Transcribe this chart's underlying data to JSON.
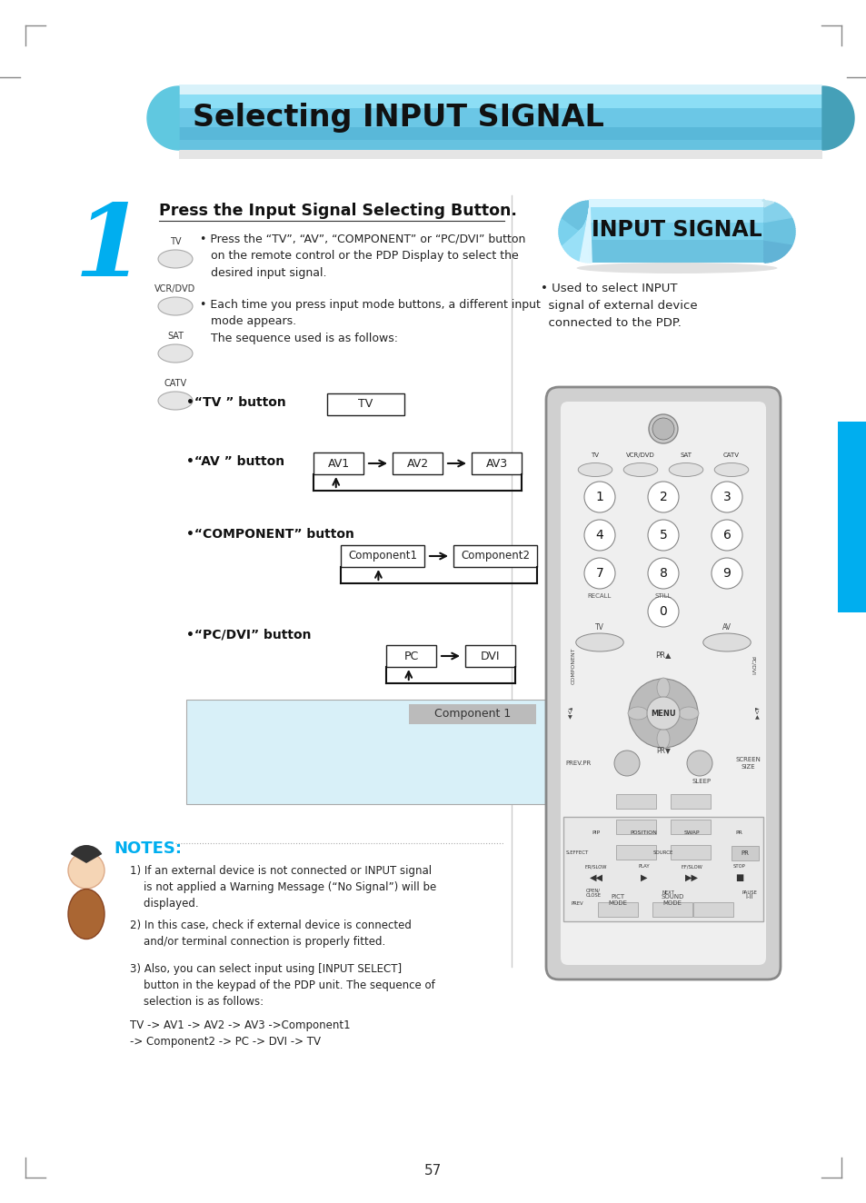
{
  "page_bg": "#ffffff",
  "title_text": "Selecting INPUT SIGNAL",
  "step_number": "1",
  "step_color": "#00AEEF",
  "step_title": "Press the Input Signal Selecting Button.",
  "bullet1": "• Press the “TV”, “AV”, “COMPONENT” or “PC/DVI” button\n   on the remote control or the PDP Display to select the\n   desired input signal.",
  "bullet2": "• Each time you press input mode buttons, a different input\n   mode appears.\n   The sequence used is as follows:",
  "tv_button_label": "•“TV ” button",
  "av_button_label": "•“AV ” button",
  "component_button_label": "•“COMPONENT” button",
  "pcdvi_button_label": "•“PC/DVI” button",
  "tv_box": "TV",
  "av_boxes": [
    "AV1",
    "AV2",
    "AV3"
  ],
  "component_boxes": [
    "Component1",
    "Component2"
  ],
  "pcdvi_boxes": [
    "PC",
    "DVI"
  ],
  "component1_screen": "Component 1",
  "screen_bg": "#D8F0F8",
  "input_signal_label": "INPUT SIGNAL",
  "input_signal_desc": "• Used to select INPUT\n  signal of external device\n  connected to the PDP.",
  "notes_title": "NOTES:",
  "notes_color": "#00AEEF",
  "note1": "1) If an external device is not connected or INPUT signal\n    is not applied a Warning Message (“No Signal”) will be\n    displayed.",
  "note2": "2) In this case, check if external device is connected\n    and/or terminal connection is properly fitted.",
  "note3": "3) Also, you can select input using [INPUT SELECT]\n    button in the keypad of the PDP unit. The sequence of\n    selection is as follows:",
  "note4": "TV -> AV1 -> AV2 -> AV3 ->Component1\n-> Component2 -> PC -> DVI -> TV",
  "page_number": "57",
  "btn_labels_left": [
    "TV",
    "VCR/DVD",
    "SAT",
    "CATV"
  ],
  "remote_btn_labels": [
    "TV",
    "VCR/DVD",
    "SAT",
    "CATV"
  ],
  "tab_color": "#00AEEF",
  "divider_color": "#CCCCCC",
  "corner_color": "#888888",
  "box_color_av": [
    "AV1",
    "AV2",
    "AV3"
  ],
  "remote_num_rows": [
    [
      1,
      2,
      3
    ],
    [
      4,
      5,
      6
    ],
    [
      7,
      8,
      9
    ]
  ]
}
